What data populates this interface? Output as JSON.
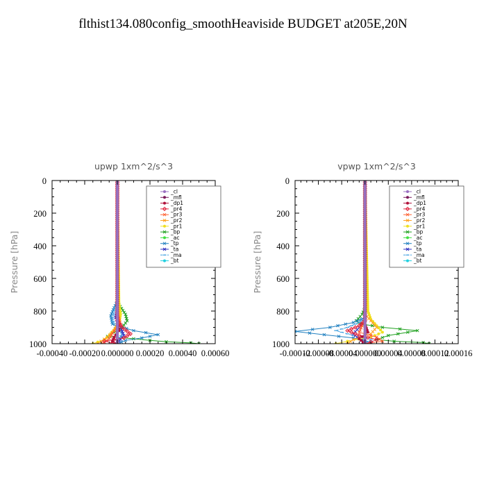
{
  "title": "flthist134.080config_smoothHeaviside  BUDGET at205E,20N",
  "series_meta": [
    {
      "name": "_cl",
      "color": "#9a6fc0",
      "marker": "circle"
    },
    {
      "name": "_mfl",
      "color": "#7a1a5a",
      "marker": "circle"
    },
    {
      "name": "_dp1",
      "color": "#b0103a",
      "marker": "circle"
    },
    {
      "name": "_pr4",
      "color": "#e0203a",
      "marker": "diamond"
    },
    {
      "name": "_pr3",
      "color": "#ff6030",
      "marker": "x"
    },
    {
      "name": "_pr2",
      "color": "#ffa020",
      "marker": "x"
    },
    {
      "name": "_pr1",
      "color": "#f0e020",
      "marker": "circle"
    },
    {
      "name": "_bp",
      "color": "#20a020",
      "marker": "x"
    },
    {
      "name": "_ac",
      "color": "#40e040",
      "marker": "circle"
    },
    {
      "name": "_tp",
      "color": "#2080c0",
      "marker": "x"
    },
    {
      "name": "_ta",
      "color": "#3030c0",
      "marker": "x"
    },
    {
      "name": "_ma",
      "color": "#40a0e0",
      "marker": "dash"
    },
    {
      "name": "_bt",
      "color": "#20d0e0",
      "marker": "circle"
    }
  ],
  "chart_data": [
    {
      "type": "line",
      "title": "upwp   1xm^2/s^3",
      "xlabel": "",
      "ylabel": "Pressure [hPa]",
      "xlim": [
        -0.0004,
        0.0006
      ],
      "ylim": [
        1000,
        0
      ],
      "xticks": [
        -0.0004,
        -0.0002,
        0.0,
        0.0002,
        0.0004,
        0.0006
      ],
      "xtick_labels": [
        "-0.00040",
        "-0.00020",
        "0.000000",
        "0.00020",
        "0.00040",
        "0.00060"
      ],
      "yticks": [
        0,
        200,
        400,
        600,
        800,
        1000
      ],
      "ytick_labels": [
        "0",
        "200",
        "400",
        "600",
        "800",
        "1000"
      ],
      "legend_position": "top-right",
      "series": [
        {
          "name": "_bp",
          "points": [
            [
              0,
              0
            ],
            [
              0,
              700
            ],
            [
              1e-05,
              760
            ],
            [
              5e-05,
              820
            ],
            [
              6e-05,
              860
            ],
            [
              3e-05,
              900
            ],
            [
              -2e-05,
              930
            ],
            [
              -6e-05,
              955
            ],
            [
              0.0001,
              970
            ],
            [
              0.0002,
              980
            ],
            [
              0.0003,
              988
            ],
            [
              0.00045,
              995
            ],
            [
              0.0005,
              1000
            ]
          ]
        },
        {
          "name": "_tp",
          "points": [
            [
              0,
              0
            ],
            [
              0,
              740
            ],
            [
              -2e-05,
              780
            ],
            [
              -4e-05,
              830
            ],
            [
              -3e-05,
              880
            ],
            [
              0.0001,
              920
            ],
            [
              0.00025,
              945
            ],
            [
              0.00015,
              965
            ],
            [
              5e-05,
              980
            ],
            [
              0,
              1000
            ]
          ]
        },
        {
          "name": "_ma",
          "points": [
            [
              0,
              0
            ],
            [
              0,
              750
            ],
            [
              -2e-05,
              800
            ],
            [
              -3e-05,
              850
            ],
            [
              -1e-05,
              900
            ],
            [
              3e-05,
              940
            ],
            [
              1e-05,
              975
            ],
            [
              0,
              1000
            ]
          ]
        },
        {
          "name": "_ta",
          "points": [
            [
              0,
              0
            ],
            [
              0,
              780
            ],
            [
              -1e-05,
              840
            ],
            [
              2e-05,
              900
            ],
            [
              4e-05,
              950
            ],
            [
              1e-05,
              985
            ],
            [
              0,
              1000
            ]
          ]
        },
        {
          "name": "_pr1",
          "points": [
            [
              0,
              0
            ],
            [
              1e-05,
              750
            ],
            [
              2e-05,
              820
            ],
            [
              1e-05,
              880
            ],
            [
              -5e-05,
              950
            ],
            [
              -8e-05,
              975
            ],
            [
              -0.00012,
              990
            ],
            [
              -0.00015,
              1000
            ]
          ]
        },
        {
          "name": "_pr2",
          "points": [
            [
              0,
              0
            ],
            [
              0,
              800
            ],
            [
              1e-05,
              860
            ],
            [
              -2e-05,
              920
            ],
            [
              -6e-05,
              960
            ],
            [
              -0.0001,
              985
            ],
            [
              -0.00012,
              1000
            ]
          ]
        },
        {
          "name": "_pr3",
          "points": [
            [
              0,
              0
            ],
            [
              0,
              820
            ],
            [
              2e-05,
              880
            ],
            [
              -3e-05,
              935
            ],
            [
              -5e-05,
              970
            ],
            [
              -8e-05,
              990
            ],
            [
              -9e-05,
              1000
            ]
          ]
        },
        {
          "name": "_pr4",
          "points": [
            [
              0,
              0
            ],
            [
              0,
              860
            ],
            [
              3e-05,
              900
            ],
            [
              8e-05,
              940
            ],
            [
              4e-05,
              965
            ],
            [
              -8e-05,
              985
            ],
            [
              -3e-05,
              995
            ],
            [
              0,
              1000
            ]
          ]
        },
        {
          "name": "_dp1",
          "points": [
            [
              0,
              0
            ],
            [
              0,
              880
            ],
            [
              1e-05,
              920
            ],
            [
              -2e-05,
              960
            ],
            [
              -3e-05,
              985
            ],
            [
              0,
              1000
            ]
          ]
        },
        {
          "name": "_ac",
          "points": [
            [
              0,
              0
            ],
            [
              0,
              1000
            ]
          ]
        },
        {
          "name": "_bt",
          "points": [
            [
              0,
              0
            ],
            [
              0,
              1000
            ]
          ]
        },
        {
          "name": "_mfl",
          "points": [
            [
              0,
              0
            ],
            [
              0,
              1000
            ]
          ]
        },
        {
          "name": "_cl",
          "points": [
            [
              0,
              0
            ],
            [
              0,
              1000
            ]
          ]
        }
      ]
    },
    {
      "type": "line",
      "title": "vpwp   1xm^2/s^3",
      "xlabel": "",
      "ylabel": "Pressure [hPa]",
      "xlim": [
        -0.00012,
        0.00016
      ],
      "ylim": [
        1000,
        0
      ],
      "xticks": [
        -0.00012,
        -8e-05,
        -4e-05,
        0.0,
        4e-05,
        8e-05,
        0.00012,
        0.00016
      ],
      "xtick_labels": [
        "-0.00012",
        "-0.00008",
        "-0.00004",
        "0.000000",
        "0.00004",
        "0.00008",
        "0.00012",
        "0.00016"
      ],
      "yticks": [
        0,
        200,
        400,
        600,
        800,
        1000
      ],
      "ytick_labels": [
        "0",
        "200",
        "400",
        "600",
        "800",
        "1000"
      ],
      "legend_position": "top-right",
      "series": [
        {
          "name": "_bp",
          "points": [
            [
              0,
              0
            ],
            [
              0,
              780
            ],
            [
              -5e-06,
              820
            ],
            [
              -1.5e-05,
              860
            ],
            [
              -5e-06,
              880
            ],
            [
              3e-05,
              900
            ],
            [
              9e-05,
              920
            ],
            [
              4e-05,
              950
            ],
            [
              2e-05,
              975
            ],
            [
              5e-05,
              985
            ],
            [
              0.0001,
              993
            ],
            [
              0.00011,
              1000
            ]
          ]
        },
        {
          "name": "_tp",
          "points": [
            [
              0,
              0
            ],
            [
              0,
              840
            ],
            [
              -2e-05,
              870
            ],
            [
              -6e-05,
              900
            ],
            [
              -0.00012,
              925
            ],
            [
              -7e-05,
              945
            ],
            [
              -2e-05,
              965
            ],
            [
              1e-05,
              990
            ],
            [
              0,
              1000
            ]
          ]
        },
        {
          "name": "_ma",
          "points": [
            [
              0,
              0
            ],
            [
              0,
              840
            ],
            [
              -1e-05,
              870
            ],
            [
              -3e-05,
              900
            ],
            [
              -5e-05,
              920
            ],
            [
              -2e-05,
              950
            ],
            [
              1e-05,
              975
            ],
            [
              0,
              1000
            ]
          ]
        },
        {
          "name": "_ta",
          "points": [
            [
              0,
              0
            ],
            [
              0,
              860
            ],
            [
              -1e-05,
              900
            ],
            [
              -2e-05,
              940
            ],
            [
              -1e-05,
              970
            ],
            [
              0,
              1000
            ]
          ]
        },
        {
          "name": "_pr1",
          "points": [
            [
              0,
              0
            ],
            [
              5e-06,
              800
            ],
            [
              1e-05,
              850
            ],
            [
              2e-05,
              890
            ],
            [
              3e-05,
              930
            ],
            [
              1e-05,
              960
            ],
            [
              -3e-05,
              985
            ],
            [
              -5e-05,
              1000
            ]
          ]
        },
        {
          "name": "_pr2",
          "points": [
            [
              0,
              0
            ],
            [
              0,
              820
            ],
            [
              1e-05,
              860
            ],
            [
              2e-05,
              900
            ],
            [
              1e-05,
              940
            ],
            [
              -2e-05,
              975
            ],
            [
              -3e-05,
              1000
            ]
          ]
        },
        {
          "name": "_pr3",
          "points": [
            [
              0,
              0
            ],
            [
              0,
              850
            ],
            [
              -5e-06,
              890
            ],
            [
              -1e-05,
              930
            ],
            [
              2e-05,
              960
            ],
            [
              3e-05,
              985
            ],
            [
              0,
              1000
            ]
          ]
        },
        {
          "name": "_pr4",
          "points": [
            [
              0,
              0
            ],
            [
              0,
              860
            ],
            [
              -1e-05,
              890
            ],
            [
              -3e-05,
              920
            ],
            [
              -1e-05,
              950
            ],
            [
              2e-05,
              975
            ],
            [
              1e-05,
              990
            ],
            [
              0,
              1000
            ]
          ]
        },
        {
          "name": "_dp1",
          "points": [
            [
              0,
              0
            ],
            [
              0,
              880
            ],
            [
              5e-06,
              930
            ],
            [
              -1e-05,
              970
            ],
            [
              0,
              1000
            ]
          ]
        },
        {
          "name": "_ac",
          "points": [
            [
              0,
              0
            ],
            [
              0,
              1000
            ]
          ]
        },
        {
          "name": "_bt",
          "points": [
            [
              0,
              0
            ],
            [
              0,
              1000
            ]
          ]
        },
        {
          "name": "_mfl",
          "points": [
            [
              0,
              0
            ],
            [
              0,
              1000
            ]
          ]
        },
        {
          "name": "_cl",
          "points": [
            [
              0,
              0
            ],
            [
              0,
              1000
            ]
          ]
        }
      ]
    }
  ]
}
